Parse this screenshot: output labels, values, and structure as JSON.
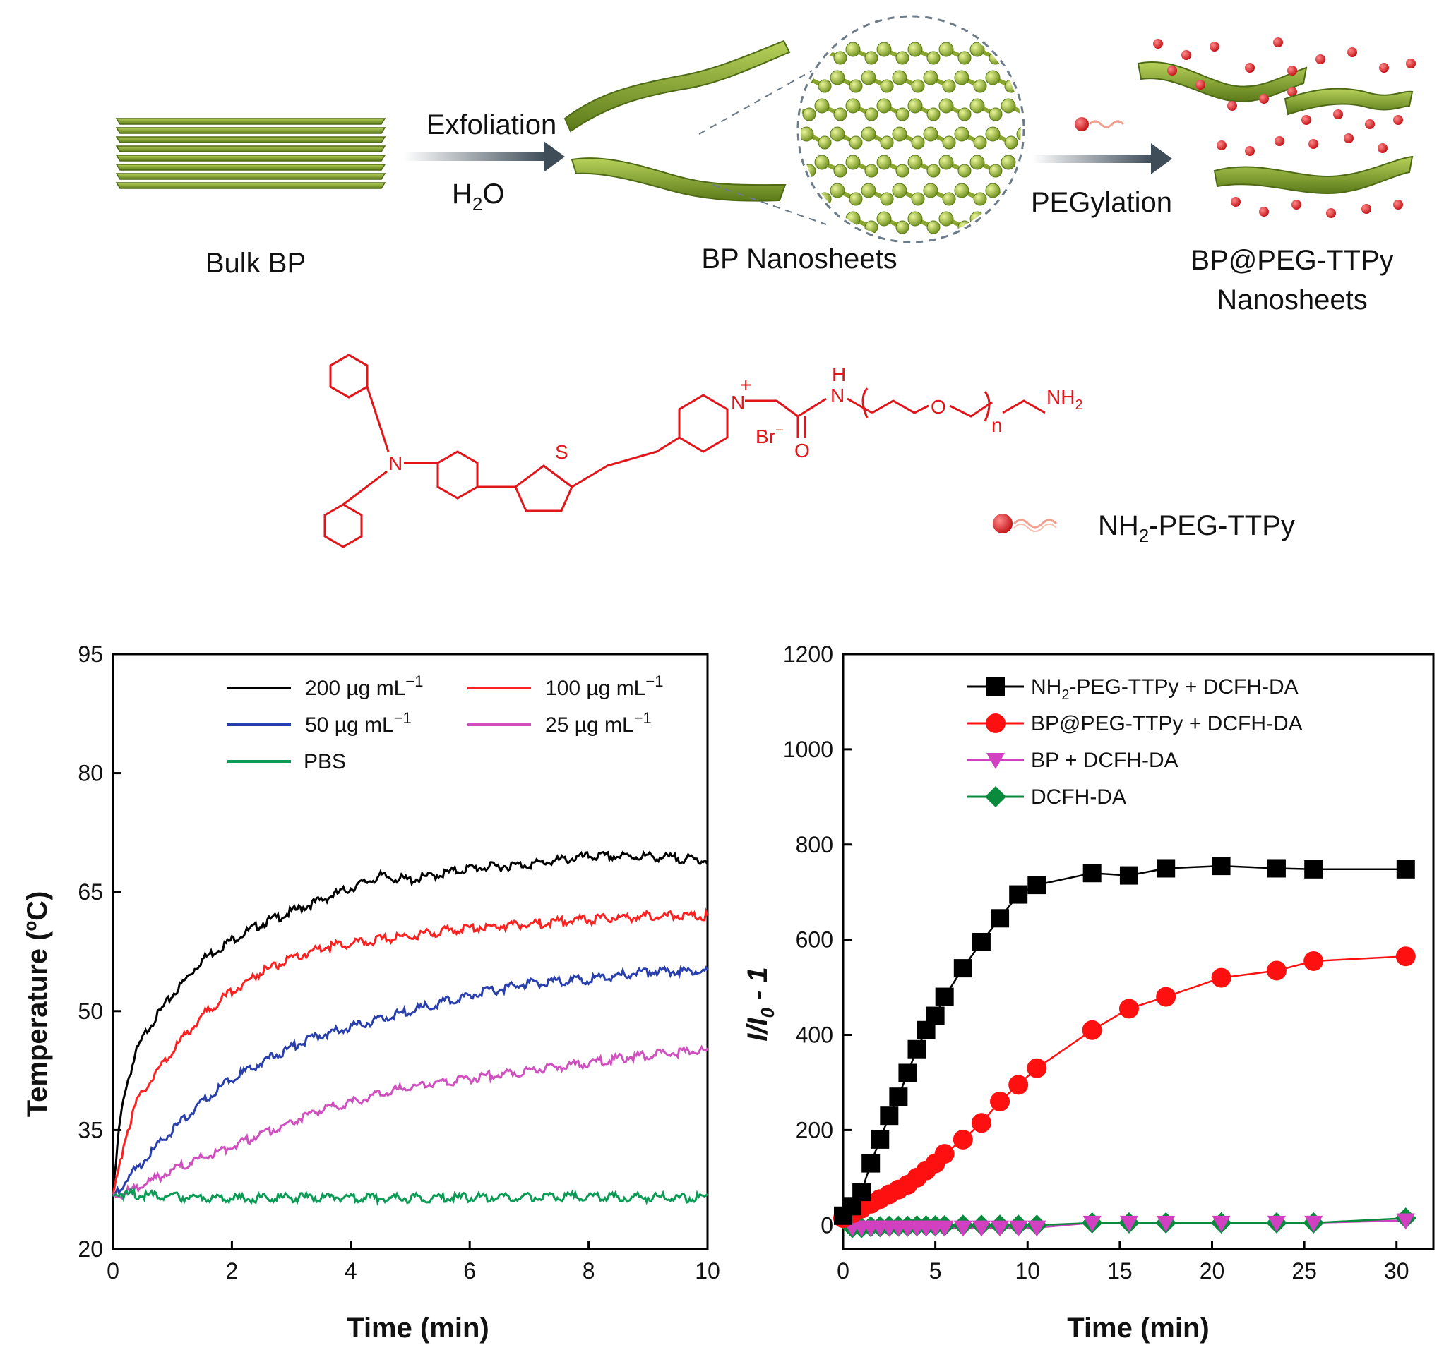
{
  "schematic": {
    "bulk_label": "Bulk BP",
    "step1_label": "Exfoliation",
    "step1_solvent_main": "H",
    "step1_solvent_sub": "2",
    "step1_solvent_end": "O",
    "nanosheets_label": "BP Nanosheets",
    "step2_label": "PEGylation",
    "product_label_line1": "BP@PEG-TTPy",
    "product_label_line2": "Nanosheets",
    "legend_main": "NH",
    "legend_sub": "2",
    "legend_end": "-PEG-TTPy",
    "colors": {
      "sheet": "#8fb13a",
      "sheet_dark": "#4e6a15",
      "peg_dot": "#d8171c",
      "arrow": "#4c5a66"
    }
  },
  "molecule": {
    "S": "S",
    "N_amine": "N",
    "N_pyr": "N",
    "plus": "+",
    "counter_ion": "Br",
    "counter_charge": "−",
    "carbonyl_O": "O",
    "amide_H": "H",
    "amide_N": "N",
    "ether_O": "O",
    "n": "n",
    "terminal_main": "NH",
    "terminal_sub": "2"
  },
  "chart_data": [
    {
      "type": "line",
      "xlabel": "Time (min)",
      "ylabel": "Temperature (ºC)",
      "xlim": [
        0,
        10
      ],
      "ylim": [
        20,
        95
      ],
      "xticks": [
        0,
        2,
        4,
        6,
        8,
        10
      ],
      "yticks": [
        20,
        35,
        50,
        65,
        80,
        95
      ],
      "legend_location": "top",
      "series": [
        {
          "name": "200 µg mL",
          "sup": "−1",
          "color": "#000000",
          "x": [
            0,
            0.1,
            0.2,
            0.4,
            0.6,
            1,
            1.5,
            2,
            2.5,
            3,
            3.5,
            4,
            4.5,
            5,
            6,
            7,
            8,
            9,
            10
          ],
          "y": [
            26.5,
            35,
            40,
            45,
            48,
            52,
            56.5,
            59,
            61,
            62.5,
            64,
            65.5,
            67,
            66.5,
            68,
            68.5,
            69.5,
            69.5,
            69
          ]
        },
        {
          "name": "100 µg mL",
          "sup": "−1",
          "color": "#ff2020",
          "x": [
            0,
            0.1,
            0.2,
            0.4,
            0.6,
            1,
            1.5,
            2,
            2.5,
            3,
            3.5,
            4,
            4.5,
            5,
            6,
            7,
            8,
            9,
            10
          ],
          "y": [
            26.5,
            30,
            34,
            38.5,
            41,
            45,
            49.5,
            52.5,
            55,
            56.5,
            58,
            58.5,
            59,
            59.5,
            60.5,
            61,
            61.5,
            62,
            62
          ]
        },
        {
          "name": "50 µg mL",
          "sup": "−1",
          "color": "#2a3fae",
          "x": [
            0,
            0.2,
            0.5,
            1,
            1.5,
            2,
            2.5,
            3,
            3.5,
            4,
            4.5,
            5,
            6,
            7,
            8,
            9,
            10
          ],
          "y": [
            26.5,
            28.5,
            31,
            35,
            38.5,
            41.5,
            43.5,
            45.5,
            47,
            48,
            49,
            50,
            52,
            53.5,
            54,
            55,
            55
          ]
        },
        {
          "name": "25 µg mL",
          "sup": "−1",
          "color": "#d050c0",
          "x": [
            0,
            0.5,
            1,
            1.5,
            2,
            2.5,
            3,
            3.5,
            4,
            4.5,
            5,
            6,
            7,
            8,
            9,
            10
          ],
          "y": [
            26.5,
            28,
            30,
            31.5,
            33,
            34.5,
            36,
            37.5,
            38.5,
            39.5,
            40.5,
            41.5,
            42.5,
            43.5,
            44.5,
            45
          ]
        },
        {
          "name": "PBS",
          "sup": "",
          "color": "#0a9b55",
          "x": [
            0,
            1,
            2,
            3,
            4,
            5,
            6,
            7,
            8,
            9,
            10
          ],
          "y": [
            27,
            26.6,
            26.4,
            26.5,
            26.5,
            26.4,
            26.5,
            26.5,
            26.6,
            26.5,
            26.4
          ]
        }
      ]
    },
    {
      "type": "scatter",
      "xlabel": "Time (min)",
      "ylabel": "I/I",
      "ylabel_sub": "0",
      "ylabel_end": " - 1",
      "xlim": [
        0,
        32
      ],
      "ylim": [
        -50,
        1200
      ],
      "xticks": [
        0,
        5,
        10,
        15,
        20,
        25,
        30
      ],
      "yticks": [
        0,
        200,
        400,
        600,
        800,
        1000,
        1200
      ],
      "legend_location": "top-right",
      "series": [
        {
          "name_main": "NH",
          "name_sub": "2",
          "name_end": "-PEG-TTPy  + DCFH-DA",
          "marker": "square",
          "color": "#000000",
          "x": [
            0,
            0.5,
            1,
            1.5,
            2,
            2.5,
            3,
            3.5,
            4,
            4.5,
            5,
            5.5,
            6.5,
            7.5,
            8.5,
            9.5,
            10.5,
            13.5,
            15.5,
            17.5,
            20.5,
            23.5,
            25.5,
            30.5
          ],
          "y": [
            20,
            40,
            70,
            130,
            180,
            230,
            270,
            320,
            370,
            410,
            440,
            480,
            540,
            595,
            645,
            695,
            715,
            740,
            735,
            750,
            755,
            750,
            748,
            748
          ]
        },
        {
          "name_main": "BP@PEG-TTPy + DCFH-DA",
          "name_sub": "",
          "name_end": "",
          "marker": "circle",
          "color": "#ff1010",
          "x": [
            0,
            0.5,
            1,
            1.5,
            2,
            2.5,
            3,
            3.5,
            4,
            4.5,
            5,
            5.5,
            6.5,
            7.5,
            8.5,
            9.5,
            10.5,
            13.5,
            15.5,
            17.5,
            20.5,
            23.5,
            25.5,
            30.5
          ],
          "y": [
            15,
            25,
            35,
            45,
            55,
            65,
            75,
            85,
            100,
            115,
            130,
            150,
            180,
            215,
            260,
            295,
            330,
            410,
            455,
            480,
            520,
            535,
            555,
            565
          ]
        },
        {
          "name_main": "BP + DCFH-DA",
          "name_sub": "",
          "name_end": "",
          "marker": "triangle-down",
          "color": "#d040c0",
          "x": [
            0.5,
            1,
            1.5,
            2,
            2.5,
            3,
            3.5,
            4,
            4.5,
            5,
            5.5,
            6.5,
            7.5,
            8.5,
            9.5,
            10.5,
            13.5,
            15.5,
            17.5,
            20.5,
            23.5,
            25.5,
            30.5
          ],
          "y": [
            -5,
            -5,
            -5,
            -5,
            -5,
            -5,
            -5,
            -5,
            -5,
            -5,
            -5,
            -5,
            -5,
            -5,
            -5,
            -5,
            5,
            5,
            5,
            5,
            5,
            5,
            10
          ]
        },
        {
          "name_main": "DCFH-DA",
          "name_sub": "",
          "name_end": "",
          "marker": "diamond",
          "color": "#0a8a3c",
          "x": [
            0.5,
            1,
            1.5,
            2,
            2.5,
            3,
            3.5,
            4,
            4.5,
            5,
            5.5,
            6.5,
            7.5,
            8.5,
            9.5,
            10.5,
            13.5,
            15.5,
            17.5,
            20.5,
            23.5,
            25.5,
            30.5
          ],
          "y": [
            -5,
            -5,
            -3,
            -3,
            -2,
            -2,
            -2,
            -1,
            -1,
            -1,
            -1,
            0,
            0,
            0,
            0,
            0,
            5,
            5,
            5,
            5,
            5,
            5,
            15
          ]
        }
      ]
    }
  ]
}
